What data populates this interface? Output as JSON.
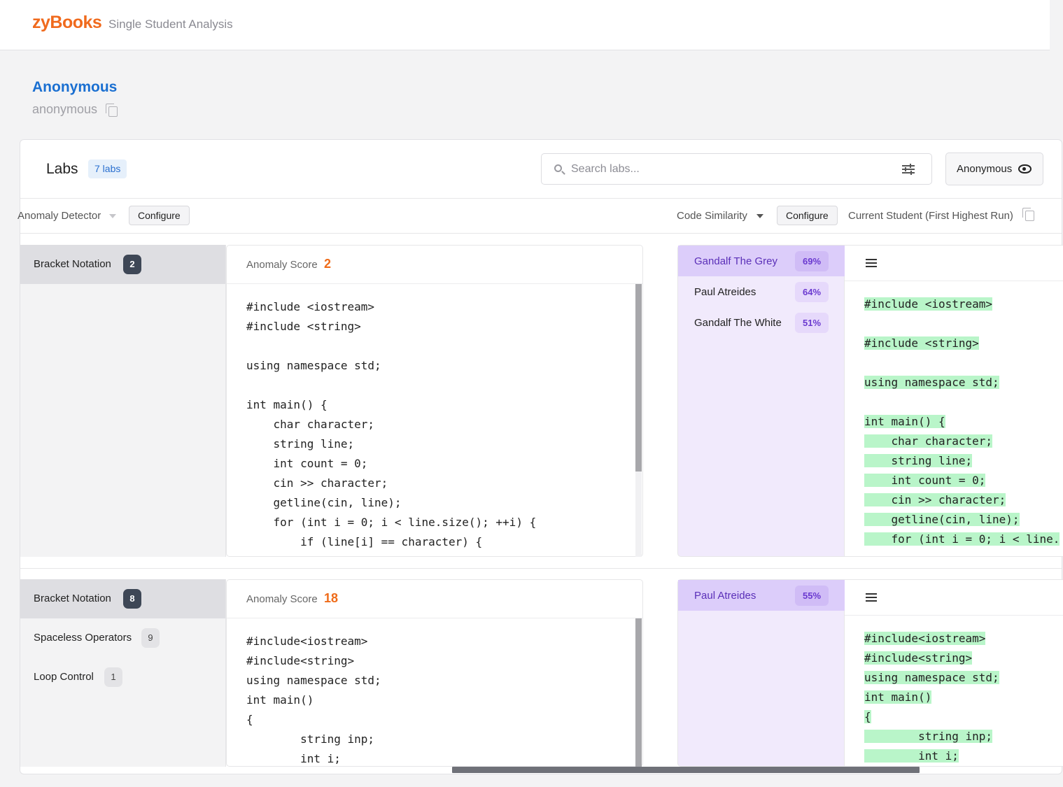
{
  "header": {
    "brand": "zyBooks",
    "page_title": "Single Student Analysis"
  },
  "student": {
    "name": "Anonymous",
    "handle": "anonymous"
  },
  "labs": {
    "title": "Labs",
    "count_badge": "7 labs",
    "search_placeholder": "Search labs...",
    "viewer_label": "Anonymous"
  },
  "toolbar": {
    "detector_label": "Anomaly Detector",
    "detector_configure": "Configure",
    "similarity_label": "Code Similarity",
    "similarity_configure": "Configure",
    "comparison_mode": "Current Student (First Highest Run)"
  },
  "rows": [
    {
      "issues": [
        {
          "label": "Bracket Notation",
          "count": "2"
        }
      ],
      "anomaly_label": "Anomaly Score",
      "anomaly_score": "2",
      "code": [
        "#include <iostream>",
        "#include <string>",
        "",
        "using namespace std;",
        "",
        "int main() {",
        "    char character;",
        "    string line;",
        "    int count = 0;",
        "    cin >> character;",
        "    getline(cin, line);",
        "    for (int i = 0; i < line.size(); ++i) {",
        "        if (line[i] == character) {"
      ],
      "matches": [
        {
          "name": "Gandalf The Grey",
          "percent": "69%"
        },
        {
          "name": "Paul Atreides",
          "percent": "64%"
        },
        {
          "name": "Gandalf The White",
          "percent": "51%"
        }
      ],
      "compare_code": [
        "#include <iostream>",
        "",
        "#include <string>",
        "",
        "using namespace std;",
        "",
        "int main() {",
        "    char character;",
        "    string line;",
        "    int count = 0;",
        "    cin >> character;",
        "    getline(cin, line);",
        "    for (int i = 0; i < line."
      ]
    },
    {
      "issues": [
        {
          "label": "Bracket Notation",
          "count": "8"
        },
        {
          "label": "Spaceless Operators",
          "count": "9"
        },
        {
          "label": "Loop Control",
          "count": "1"
        }
      ],
      "anomaly_label": "Anomaly Score",
      "anomaly_score": "18",
      "code": [
        "#include<iostream>",
        "#include<string>",
        "using namespace std;",
        "int main()",
        "{",
        "        string inp;",
        "        int i;"
      ],
      "matches": [
        {
          "name": "Paul Atreides",
          "percent": "55%"
        }
      ],
      "compare_code": [
        "#include<iostream>",
        "#include<string>",
        "using namespace std;",
        "int main()",
        "{",
        "        string inp;",
        "        int i;"
      ]
    }
  ]
}
